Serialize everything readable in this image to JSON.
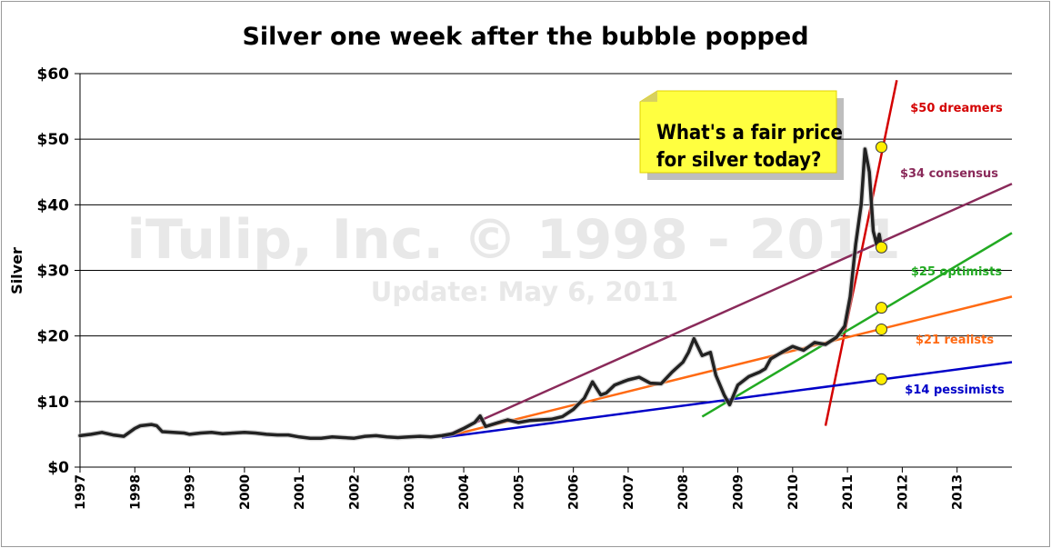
{
  "chart_data": {
    "type": "line",
    "title": "Silver one week after the bubble popped",
    "ylabel": "Silver",
    "xlabel": "",
    "xlim": [
      1997,
      2014
    ],
    "ylim": [
      0,
      60
    ],
    "y_ticks": [
      0,
      10,
      20,
      30,
      40,
      50,
      60
    ],
    "y_tick_labels": [
      "$0",
      "$10",
      "$20",
      "$30",
      "$40",
      "$50",
      "$60"
    ],
    "x_tick_labels": [
      "1997",
      "1998",
      "1999",
      "2000",
      "2001",
      "2002",
      "2003",
      "2004",
      "2005",
      "2006",
      "2007",
      "2008",
      "2009",
      "2010",
      "2011",
      "2012",
      "2013"
    ],
    "grid": "horizontal",
    "watermark": [
      "iTulip, Inc. © 1998 - 2011",
      "Update: May 6, 2011"
    ],
    "annotation": [
      "What's a fair price",
      "for silver today?"
    ],
    "price_series": {
      "color": "#222222",
      "x": [
        1997.0,
        1997.2,
        1997.4,
        1997.6,
        1997.8,
        1998.0,
        1998.1,
        1998.3,
        1998.4,
        1998.5,
        1998.7,
        1998.9,
        1999.0,
        1999.2,
        1999.4,
        1999.6,
        1999.8,
        2000.0,
        2000.2,
        2000.4,
        2000.6,
        2000.8,
        2001.0,
        2001.2,
        2001.4,
        2001.6,
        2001.8,
        2002.0,
        2002.2,
        2002.4,
        2002.6,
        2002.8,
        2003.0,
        2003.2,
        2003.4,
        2003.6,
        2003.8,
        2004.0,
        2004.2,
        2004.3,
        2004.4,
        2004.6,
        2004.8,
        2005.0,
        2005.2,
        2005.4,
        2005.6,
        2005.8,
        2006.0,
        2006.2,
        2006.35,
        2006.5,
        2006.6,
        2006.75,
        2006.9,
        2007.0,
        2007.2,
        2007.4,
        2007.6,
        2007.8,
        2008.0,
        2008.1,
        2008.2,
        2008.35,
        2008.5,
        2008.6,
        2008.75,
        2008.85,
        2009.0,
        2009.2,
        2009.4,
        2009.5,
        2009.6,
        2009.8,
        2010.0,
        2010.2,
        2010.4,
        2010.6,
        2010.8,
        2010.95,
        2011.05,
        2011.15,
        2011.25,
        2011.32,
        2011.4,
        2011.47,
        2011.53,
        2011.58,
        2011.62
      ],
      "y": [
        4.8,
        5.0,
        5.3,
        4.9,
        4.7,
        5.9,
        6.3,
        6.5,
        6.3,
        5.4,
        5.3,
        5.2,
        5.0,
        5.2,
        5.3,
        5.1,
        5.2,
        5.3,
        5.2,
        5.0,
        4.9,
        4.9,
        4.6,
        4.4,
        4.4,
        4.6,
        4.5,
        4.4,
        4.7,
        4.8,
        4.6,
        4.5,
        4.6,
        4.7,
        4.6,
        4.8,
        5.1,
        5.9,
        6.8,
        7.8,
        6.2,
        6.7,
        7.2,
        6.8,
        7.1,
        7.2,
        7.3,
        7.7,
        8.8,
        10.5,
        13.0,
        11.0,
        11.3,
        12.5,
        13.0,
        13.3,
        13.7,
        12.8,
        12.7,
        14.5,
        16.0,
        17.5,
        19.6,
        17.0,
        17.5,
        14.0,
        11.0,
        9.5,
        12.5,
        13.8,
        14.5,
        15.0,
        16.5,
        17.5,
        18.4,
        17.8,
        19.0,
        18.7,
        19.8,
        21.5,
        26.0,
        34.0,
        40.0,
        48.5,
        45.0,
        36.0,
        34.0,
        35.5,
        33.5
      ]
    },
    "trend_lines": [
      {
        "name": "$50 dreamers",
        "color": "#d40000",
        "from": [
          2010.6,
          6.3
        ],
        "to": [
          2011.9,
          59.0
        ]
      },
      {
        "name": "$34 consensus",
        "color": "#8a2a5a",
        "from": [
          2003.6,
          4.5
        ],
        "to": [
          2014.0,
          43.2
        ]
      },
      {
        "name": "$25 optimists",
        "color": "#22aa22",
        "from": [
          2008.35,
          7.7
        ],
        "to": [
          2014.0,
          35.7
        ]
      },
      {
        "name": "$21 realists",
        "color": "#ff6a13",
        "from": [
          2003.6,
          4.5
        ],
        "to": [
          2014.0,
          26.0
        ]
      },
      {
        "name": "$14 pessimists",
        "color": "#0000c8",
        "from": [
          2003.6,
          4.5
        ],
        "to": [
          2014.0,
          16.0
        ]
      }
    ],
    "markers": [
      {
        "x": 2011.62,
        "y": 48.8
      },
      {
        "x": 2011.62,
        "y": 33.5
      },
      {
        "x": 2011.62,
        "y": 24.3
      },
      {
        "x": 2011.62,
        "y": 21.0
      },
      {
        "x": 2011.62,
        "y": 13.4
      }
    ],
    "marker_color": "#ffee00"
  }
}
